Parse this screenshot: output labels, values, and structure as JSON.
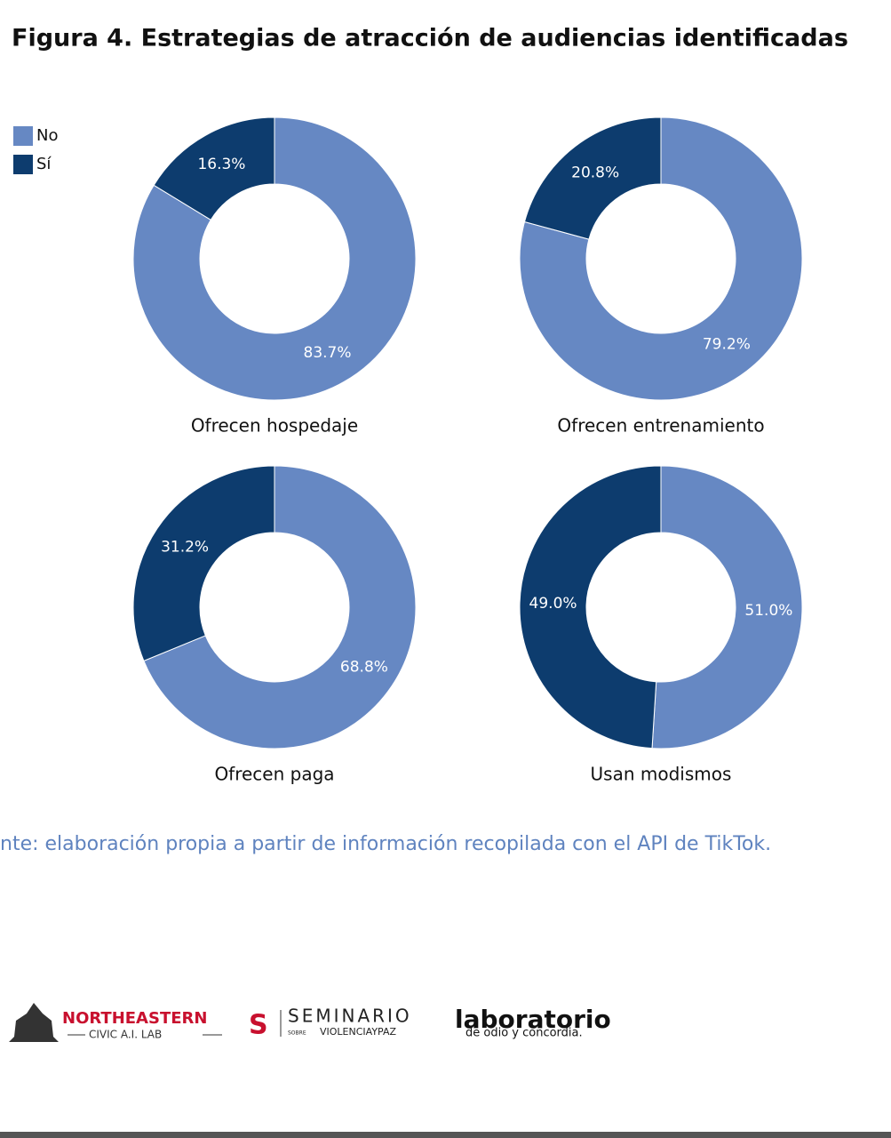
{
  "title": "Figura 4. Estrategias de atracción de audiencias identificadas",
  "chart_data": [
    {
      "type": "pie",
      "title": "Ofrecen hospedaje",
      "categories": [
        "No",
        "Sí"
      ],
      "values": [
        83.7,
        16.3
      ],
      "value_labels": [
        "83.7%",
        "16.3%"
      ],
      "colors": [
        "#6688c3",
        "#0d3c6e"
      ],
      "legend": "top-left"
    },
    {
      "type": "pie",
      "title": "Ofrecen entrenamiento",
      "categories": [
        "No",
        "Sí"
      ],
      "values": [
        79.2,
        20.8
      ],
      "value_labels": [
        "79.2%",
        "20.8%"
      ],
      "colors": [
        "#6688c3",
        "#0d3c6e"
      ]
    },
    {
      "type": "pie",
      "title": "Ofrecen paga",
      "categories": [
        "No",
        "Sí"
      ],
      "values": [
        68.8,
        31.2
      ],
      "value_labels": [
        "68.8%",
        "31.2%"
      ],
      "colors": [
        "#6688c3",
        "#0d3c6e"
      ]
    },
    {
      "type": "pie",
      "title": "Usan modismos",
      "categories": [
        "No",
        "Sí"
      ],
      "values": [
        51.0,
        49.0
      ],
      "value_labels": [
        "51.0%",
        "49.0%"
      ],
      "colors": [
        "#6688c3",
        "#0d3c6e"
      ]
    }
  ],
  "source": "nte: elaboración propia a partir de información recopilada con el API de TikTok.",
  "logos": {
    "northeastern": "NORTHEASTERN",
    "civic": "CIVIC A.I. LAB",
    "seminario": "SEMINARIO",
    "sobre": "SOBRE",
    "violencia": "VIOLENCIAYPAZ",
    "laboratorio": "laboratorio",
    "odio": "de odio y concordia."
  }
}
